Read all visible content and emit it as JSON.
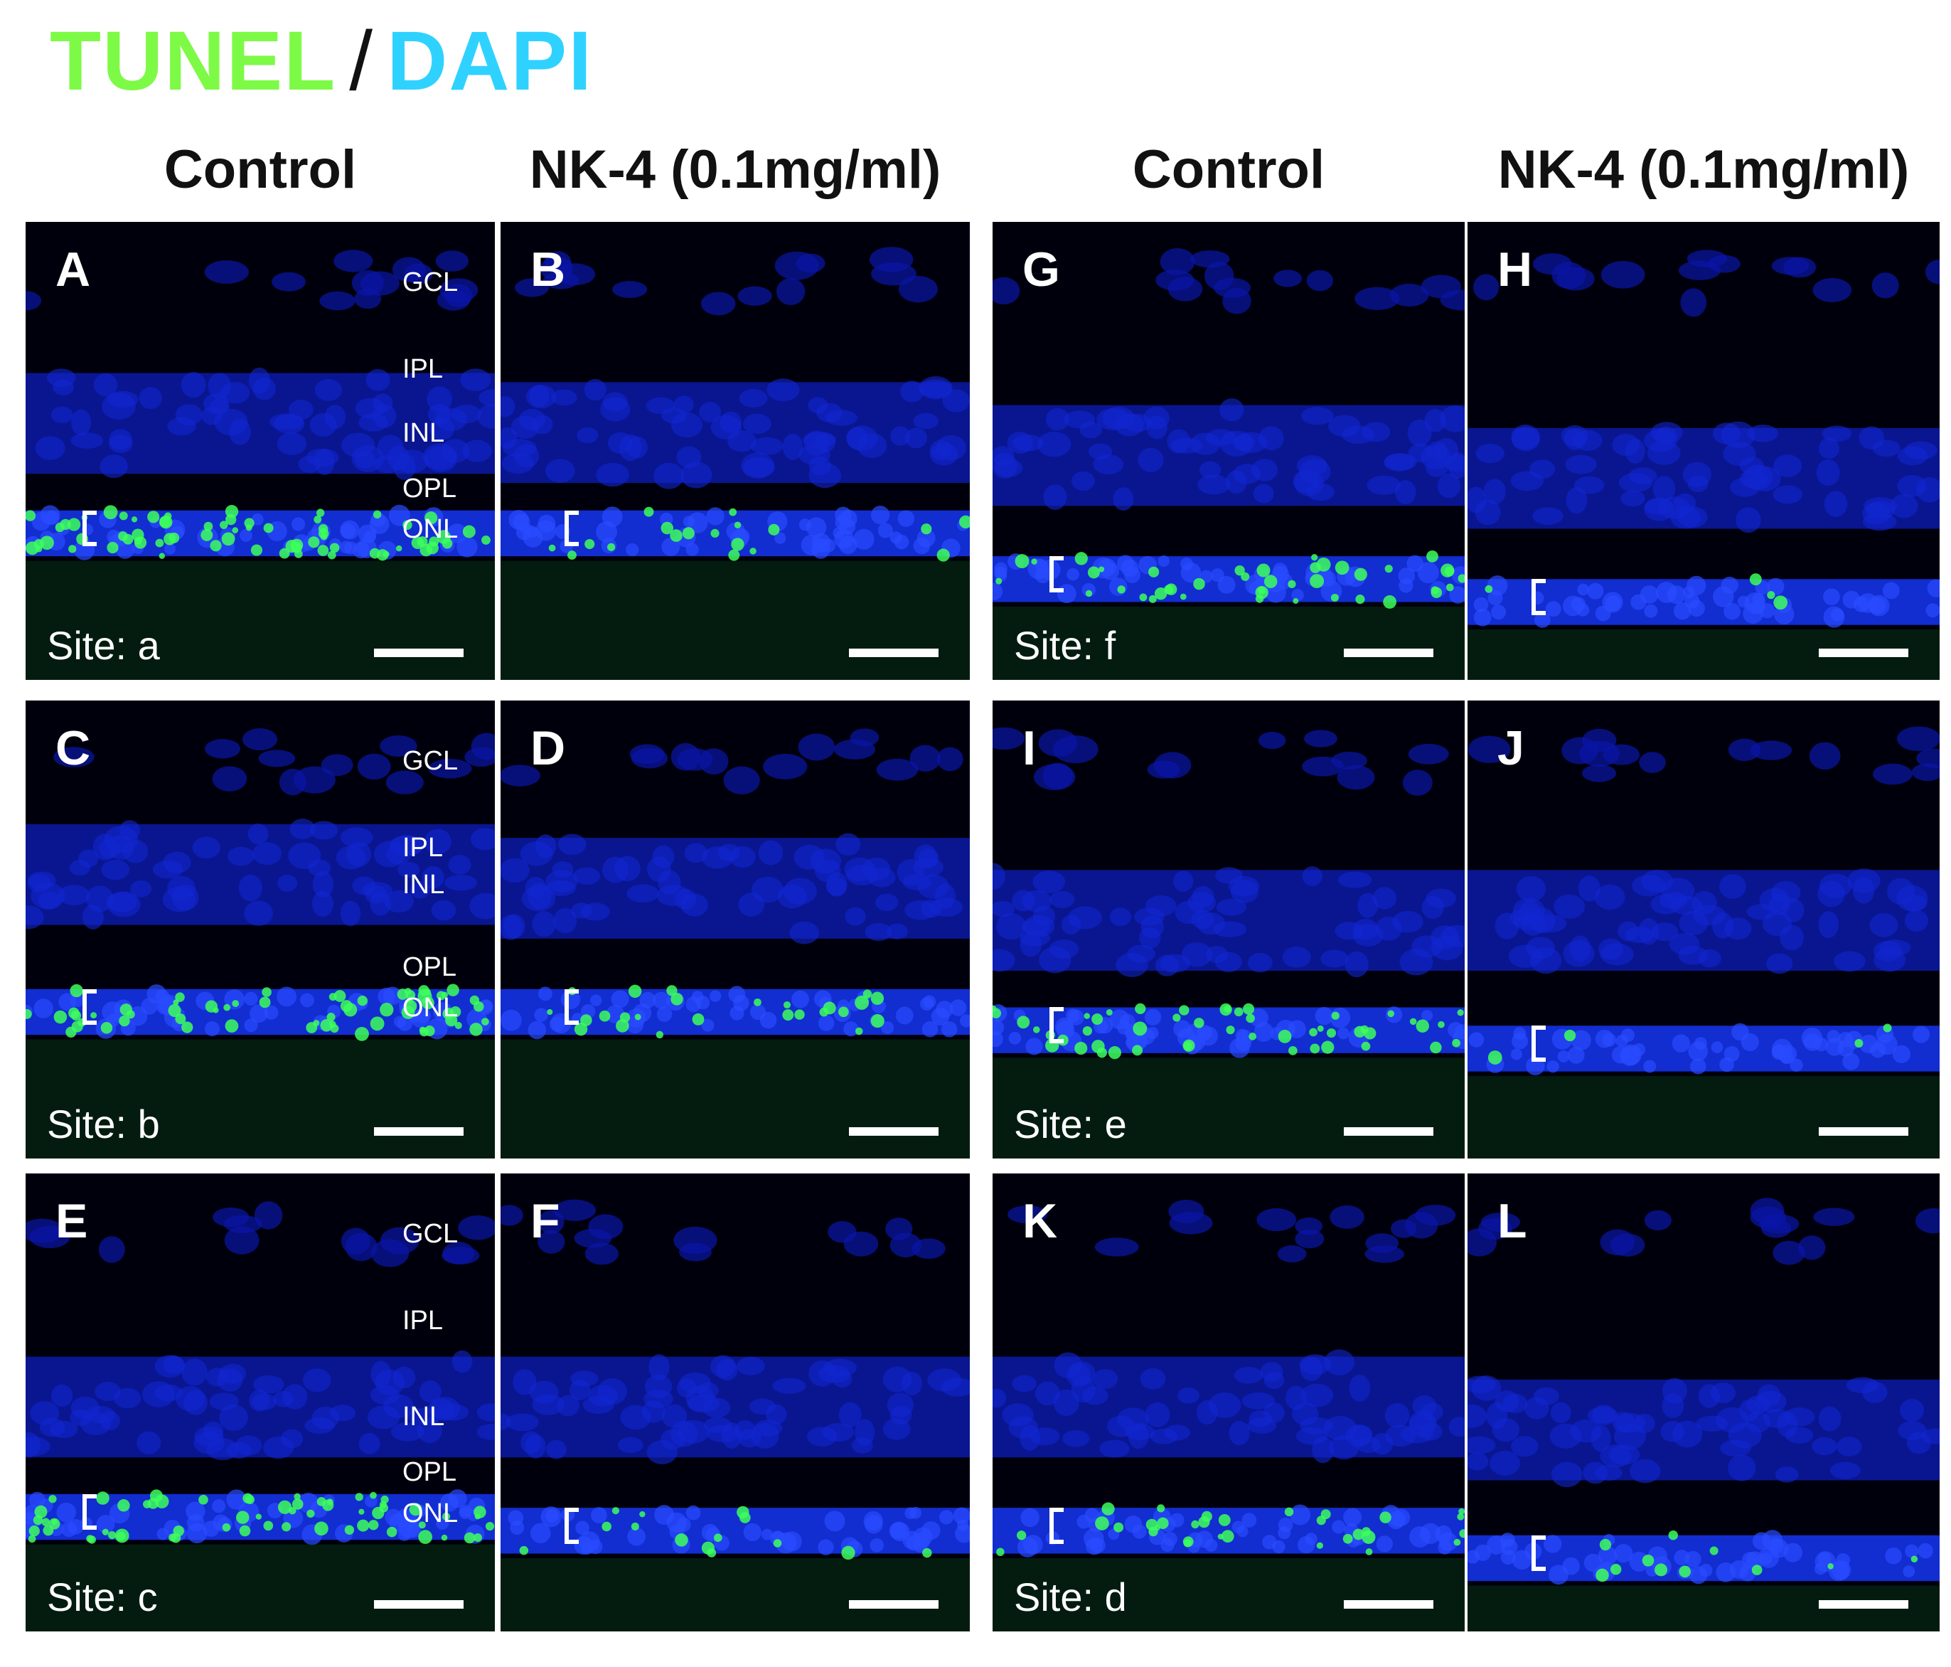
{
  "legend": {
    "tunel": "TUNEL",
    "separator": "/",
    "dapi": "DAPI",
    "tunel_color": "#7dfa46",
    "dapi_color": "#2fd2ff"
  },
  "columns": [
    "Control",
    "NK-4 (0.1mg/ml)",
    "Control",
    "NK-4 (0.1mg/ml)"
  ],
  "layers": [
    "GCL",
    "IPL",
    "INL",
    "OPL",
    "ONL"
  ],
  "panels": [
    {
      "label": "A",
      "site": "Site: a"
    },
    {
      "label": "B",
      "site": ""
    },
    {
      "label": "C",
      "site": "Site: b"
    },
    {
      "label": "D",
      "site": ""
    },
    {
      "label": "E",
      "site": "Site: c"
    },
    {
      "label": "F",
      "site": ""
    },
    {
      "label": "G",
      "site": "Site: f"
    },
    {
      "label": "H",
      "site": ""
    },
    {
      "label": "I",
      "site": "Site: e"
    },
    {
      "label": "J",
      "site": ""
    },
    {
      "label": "K",
      "site": "Site: d"
    },
    {
      "label": "L",
      "site": ""
    }
  ]
}
